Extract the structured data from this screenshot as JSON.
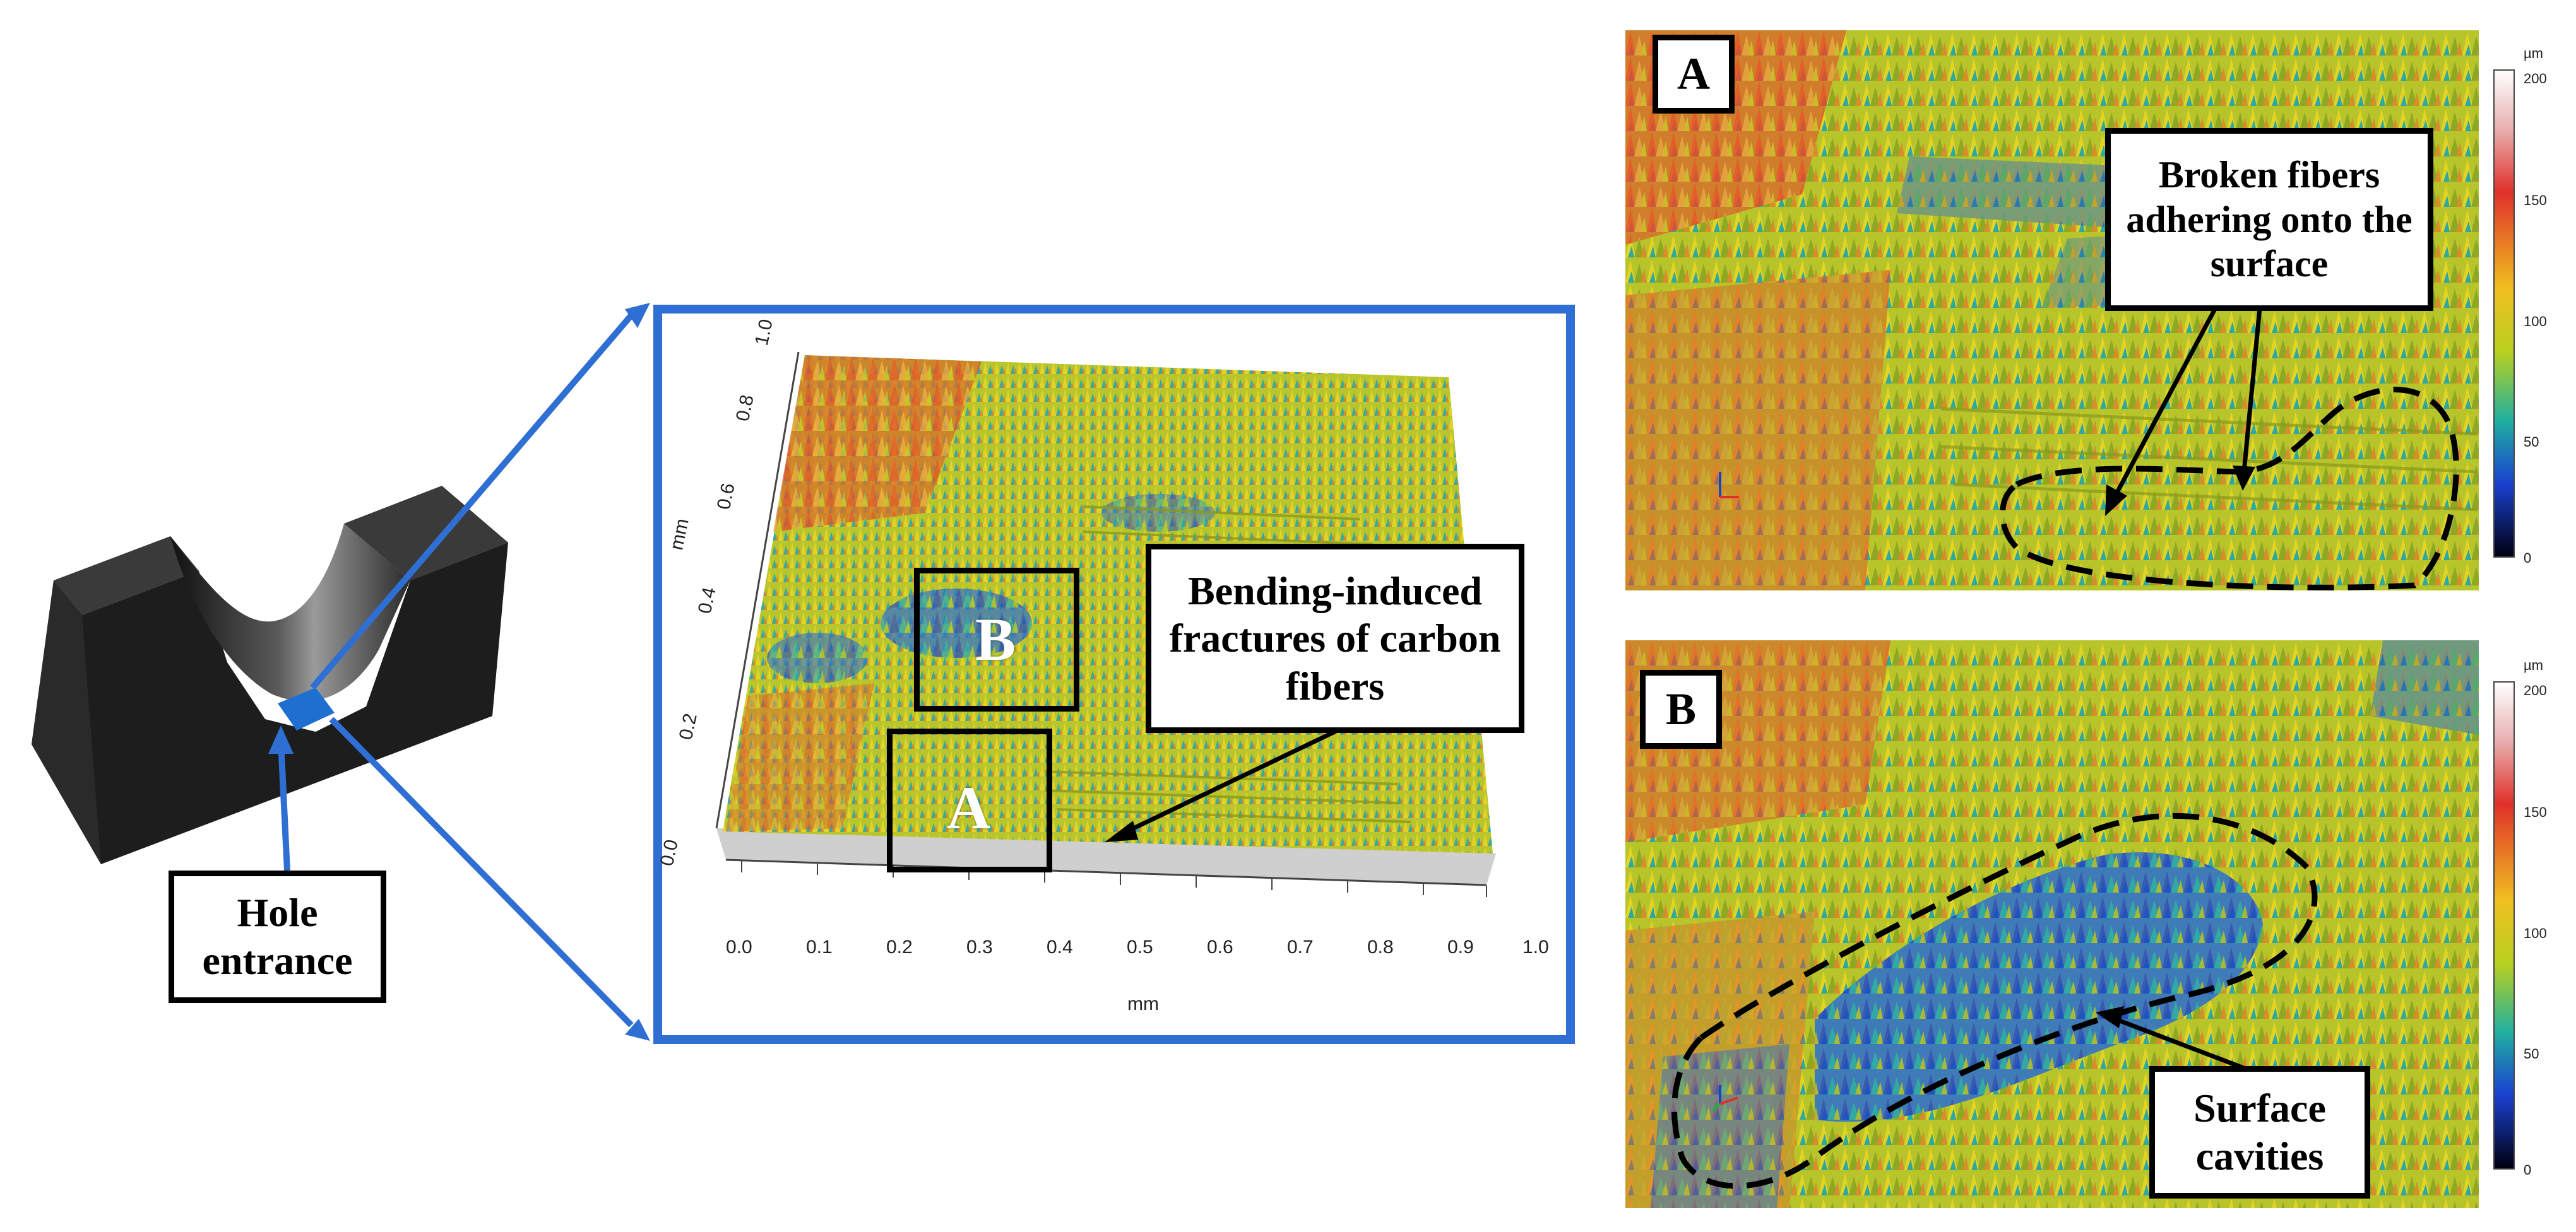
{
  "left_panel": {
    "callout": "Hole entrance",
    "colors": {
      "block": "#1f1f1f",
      "patch": "#1f6fd1"
    }
  },
  "middle_panel": {
    "frame_color": "#2f6fd3",
    "callout": "Bending-induced fractures of carbon fibers",
    "region_a": "A",
    "region_b": "B",
    "x_axis": {
      "label": "mm",
      "ticks": [
        "0.0",
        "0.1",
        "0.2",
        "0.3",
        "0.4",
        "0.5",
        "0.6",
        "0.7",
        "0.8",
        "0.9",
        "1.0"
      ]
    },
    "y_axis": {
      "label": "mm",
      "ticks": [
        "0.0",
        "0.2",
        "0.4",
        "0.6",
        "0.8",
        "1.0"
      ]
    }
  },
  "panel_a": {
    "letter": "A",
    "callout": "Broken fibers adhering onto the surface",
    "colorbar": {
      "unit": "µm",
      "ticks": [
        "200",
        "150",
        "100",
        "50",
        "0"
      ]
    }
  },
  "panel_b": {
    "letter": "B",
    "callout": "Surface cavities",
    "colorbar": {
      "unit": "µm",
      "ticks": [
        "200",
        "150",
        "100",
        "50",
        "0"
      ]
    }
  }
}
